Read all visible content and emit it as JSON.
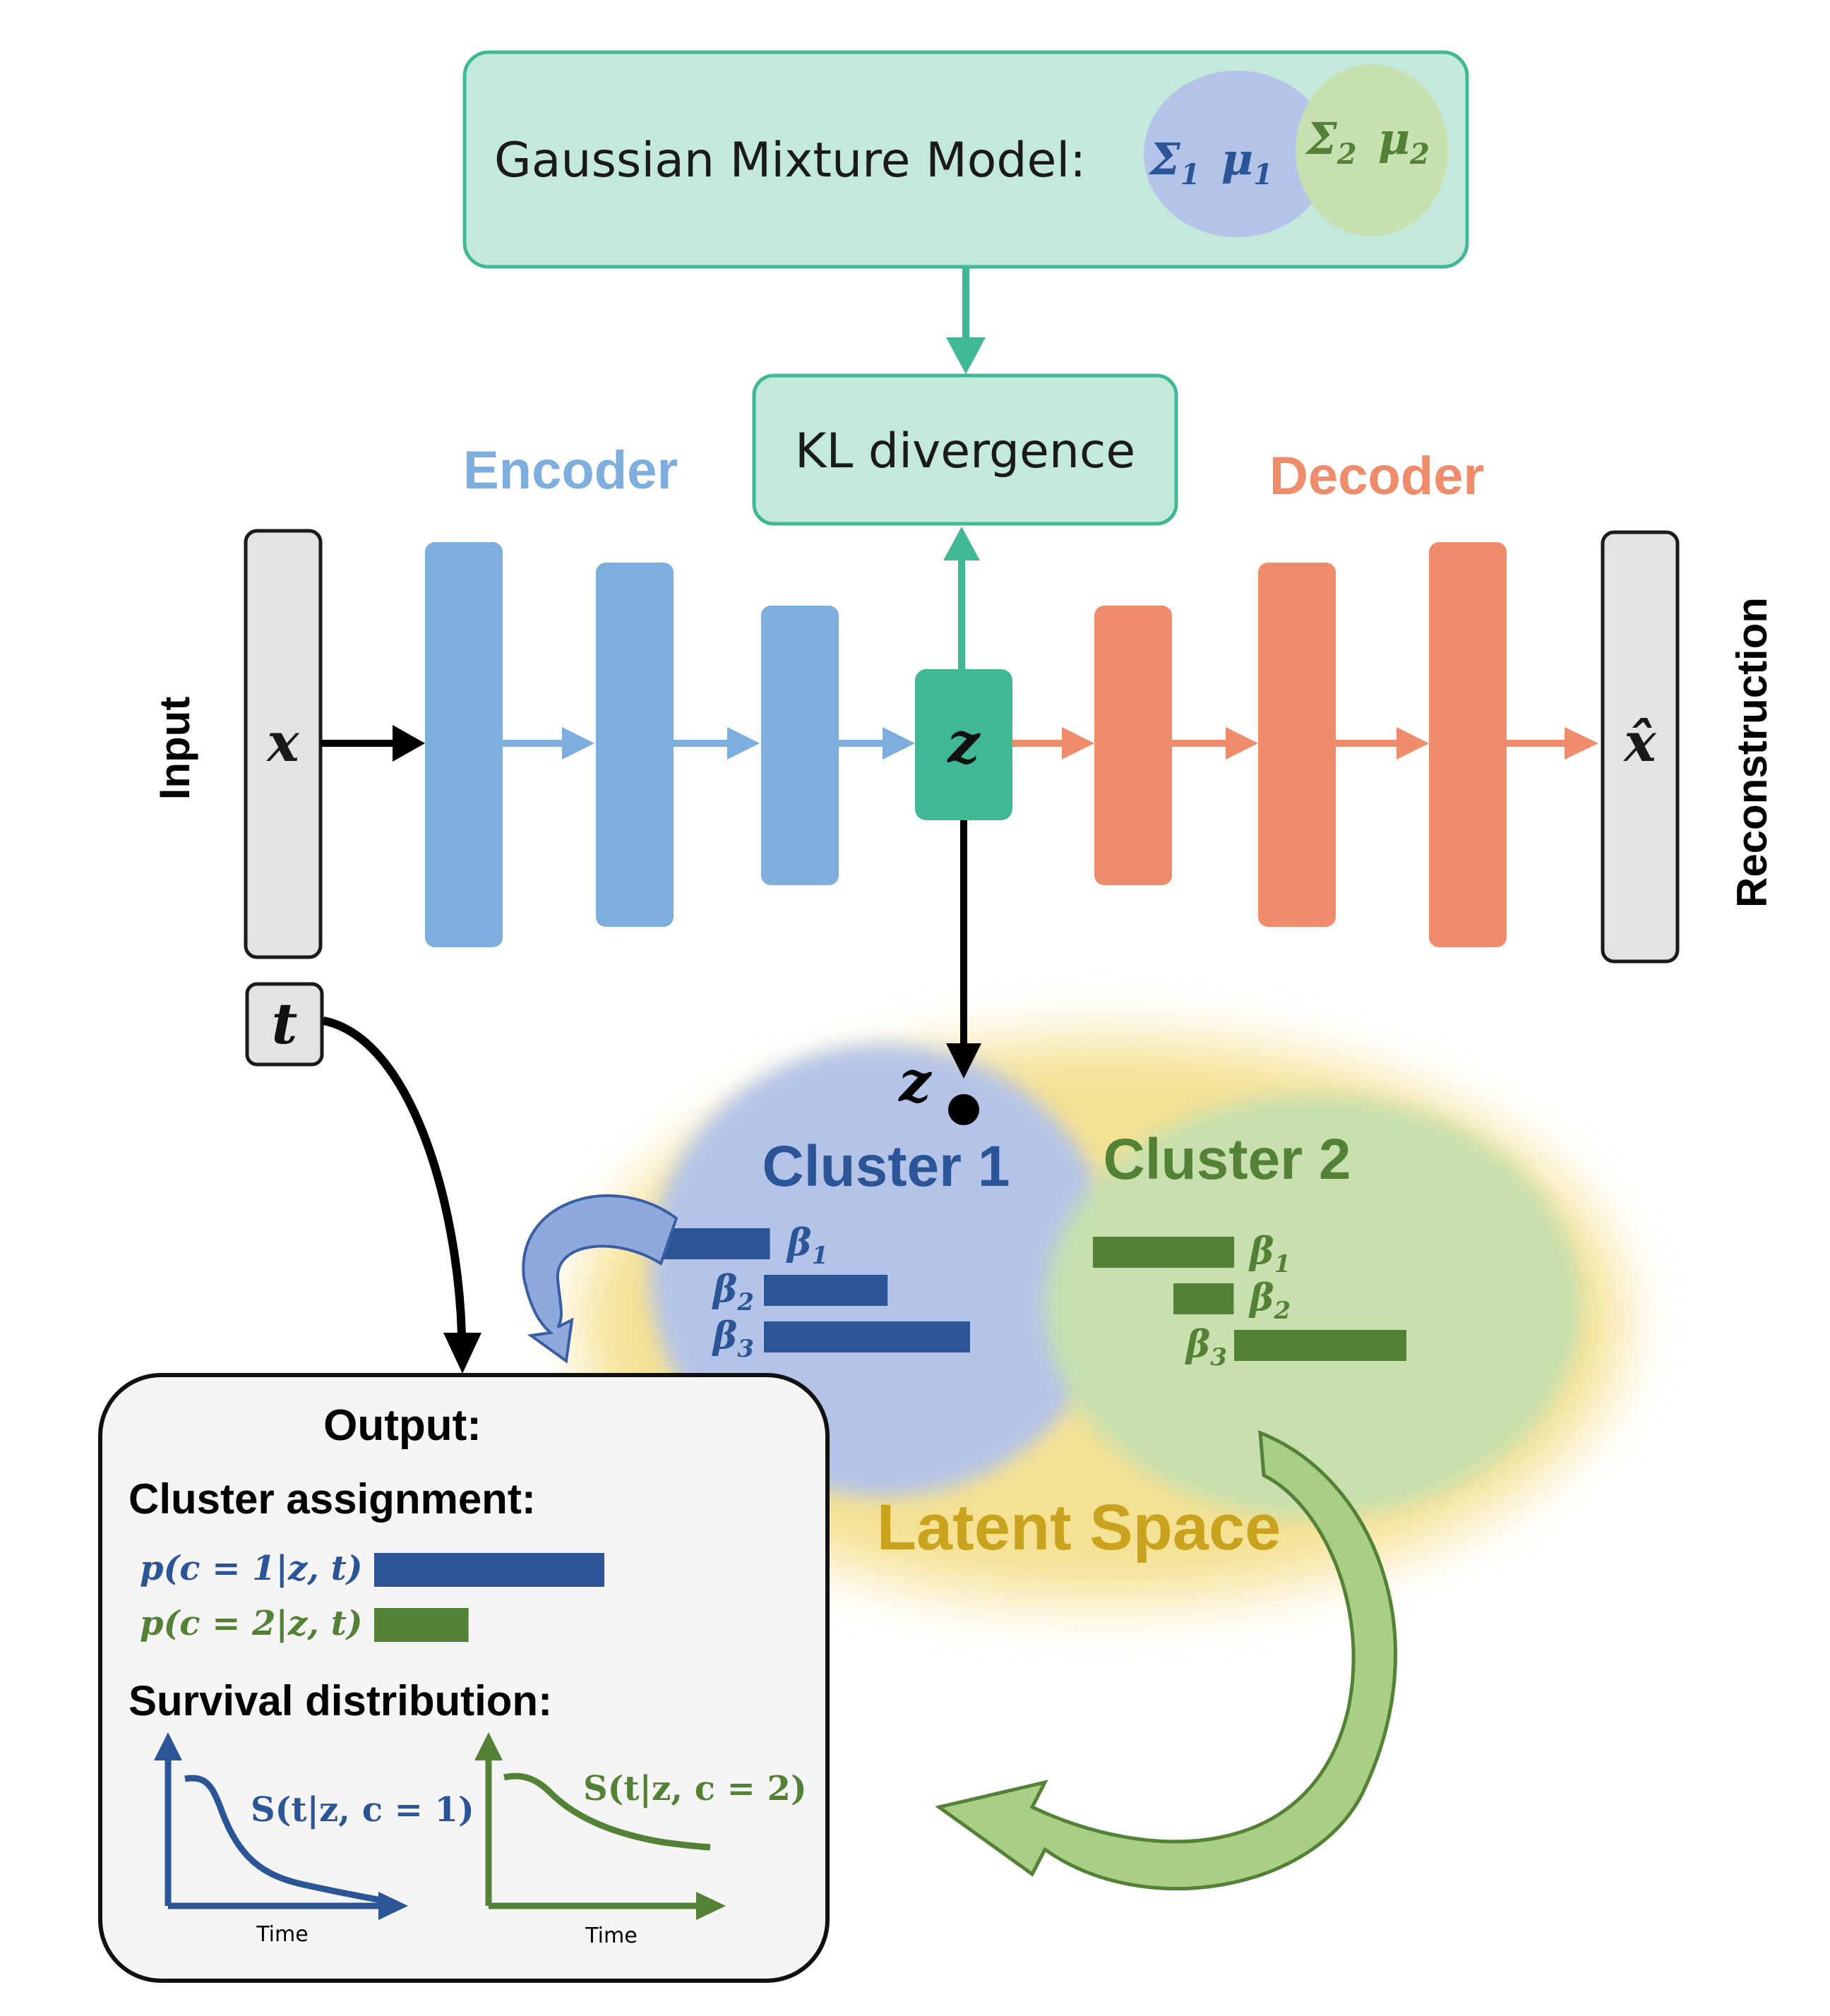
{
  "gmm": {
    "label": "Gaussian Mixture Model:",
    "sigma1": "Σ",
    "sub1": "1",
    "mu1": "μ",
    "mu1_sub": "1",
    "sigma2": "Σ",
    "sub2": "2",
    "mu2": "μ",
    "mu2_sub": "2"
  },
  "kl": {
    "label": "KL divergence"
  },
  "encoder": {
    "label": "Encoder"
  },
  "decoder": {
    "label": "Decoder"
  },
  "input": {
    "side_label": "Input",
    "var": "x"
  },
  "recon": {
    "side_label": "Reconstruction",
    "var": "x̂"
  },
  "latent_node": {
    "var": "z"
  },
  "time_input": {
    "var": "t"
  },
  "latent": {
    "label": "Latent Space",
    "point_label": "z",
    "clusters": [
      {
        "name": "Cluster 1",
        "color": "#2c5597",
        "betas": [
          {
            "sym": "β",
            "sub": "1",
            "value": 0.55
          },
          {
            "sym": "β",
            "sub": "2",
            "value": 0.6
          },
          {
            "sym": "β",
            "sub": "3",
            "value": 1.0
          }
        ]
      },
      {
        "name": "Cluster 2",
        "color": "#538135",
        "betas": [
          {
            "sym": "β",
            "sub": "1",
            "value": 0.82
          },
          {
            "sym": "β",
            "sub": "2",
            "value": 0.35
          },
          {
            "sym": "β",
            "sub": "3",
            "value": 1.0
          }
        ]
      }
    ]
  },
  "output": {
    "title": "Output:",
    "assign_title": "Cluster assignment:",
    "assignments": [
      {
        "label": "p(c = 1|z, t)",
        "value": 1.0
      },
      {
        "label": "p(c = 2|z, t)",
        "value": 0.41
      }
    ],
    "survival_title": "Survival distribution:",
    "curves": [
      {
        "label": "S(t|z, c = 1)",
        "xlabel": "Time"
      },
      {
        "label": "S(t|z, c = 2)",
        "xlabel": "Time"
      }
    ]
  }
}
